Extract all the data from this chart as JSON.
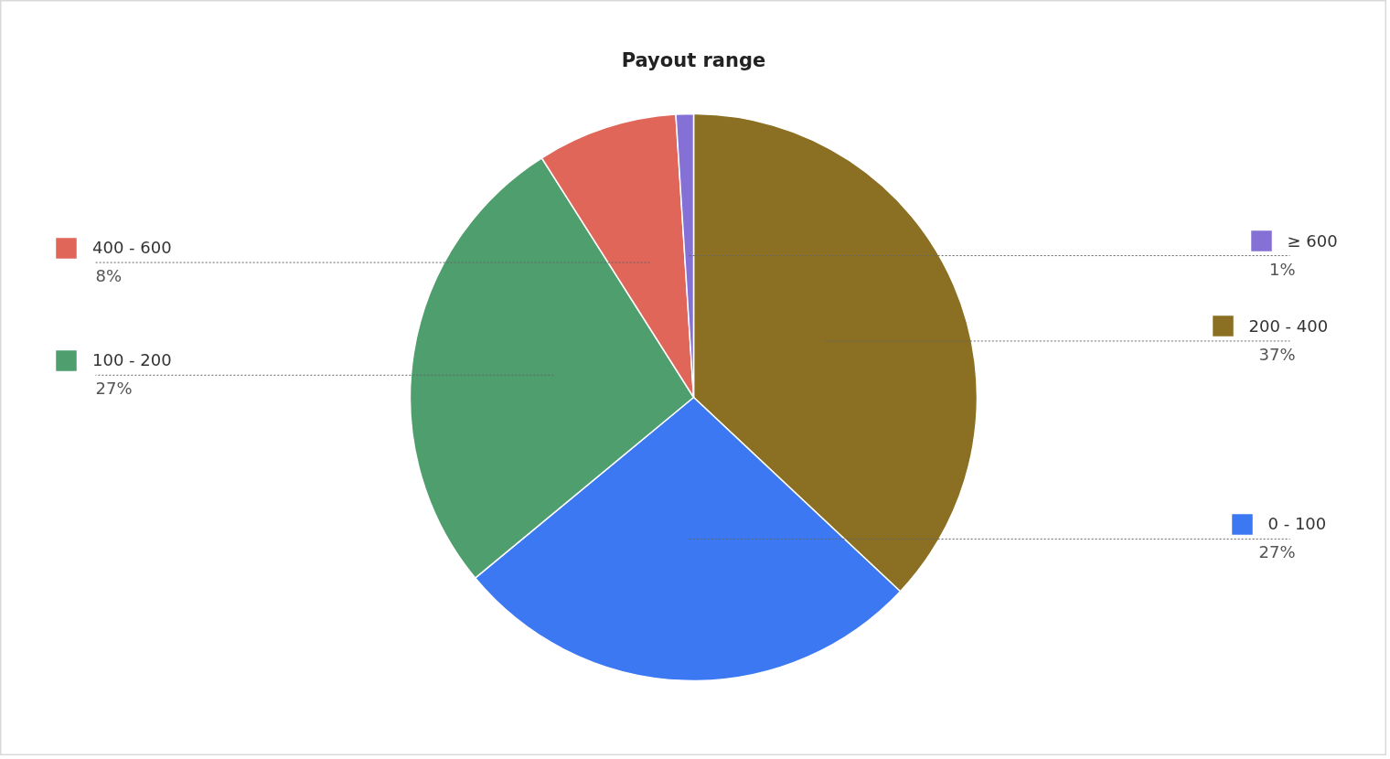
{
  "chart_data": {
    "type": "pie",
    "title": "Payout range",
    "categories": [
      "200 - 400",
      "0 - 100",
      "100 - 200",
      "400 - 600",
      "≥ 600"
    ],
    "values": [
      37,
      27,
      27,
      8,
      1
    ],
    "value_labels": [
      "37%",
      "27%",
      "27%",
      "8%",
      "1%"
    ],
    "colors": [
      "#8b7023",
      "#3b78f2",
      "#4f9e6e",
      "#e0665a",
      "#8570d6"
    ],
    "legend": "left"
  }
}
